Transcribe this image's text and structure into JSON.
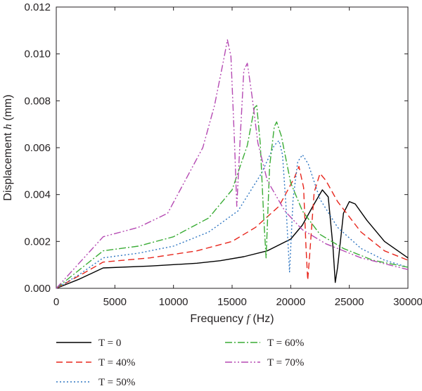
{
  "chart_data": {
    "type": "line",
    "xlabel": "Frequency f (Hz)",
    "xlabel_parts": [
      "Frequency ",
      "f",
      " (Hz)"
    ],
    "ylabel": "Displacement h (mm)",
    "ylabel_parts": [
      "Displacement ",
      "h",
      " (mm)"
    ],
    "xlim": [
      0,
      30000
    ],
    "ylim": [
      0,
      0.012
    ],
    "x_ticks": [
      "0",
      "5000",
      "10000",
      "15000",
      "20000",
      "25000",
      "30000"
    ],
    "y_ticks": [
      "0.000",
      "0.002",
      "0.004",
      "0.006",
      "0.008",
      "0.010",
      "0.012"
    ],
    "grid": false,
    "legend_position": "bottom",
    "series": [
      {
        "name": "T = 0",
        "color": "#000000",
        "dash": "solid",
        "points": [
          [
            0,
            0.0
          ],
          [
            2000,
            0.0004
          ],
          [
            4000,
            0.00087
          ],
          [
            8000,
            0.00095
          ],
          [
            12000,
            0.00107
          ],
          [
            14000,
            0.00118
          ],
          [
            16000,
            0.00135
          ],
          [
            18000,
            0.0016
          ],
          [
            20000,
            0.0021
          ],
          [
            21000,
            0.0027
          ],
          [
            22000,
            0.0036
          ],
          [
            22700,
            0.0042
          ],
          [
            23200,
            0.0039
          ],
          [
            23600,
            0.0018
          ],
          [
            23800,
            0.00025
          ],
          [
            24000,
            0.0009
          ],
          [
            24500,
            0.0032
          ],
          [
            25000,
            0.0037
          ],
          [
            25500,
            0.0036
          ],
          [
            26500,
            0.0029
          ],
          [
            28000,
            0.002
          ],
          [
            30000,
            0.0013
          ]
        ]
      },
      {
        "name": "T = 40%",
        "color": "#e8261c",
        "dash": "9 5",
        "points": [
          [
            0,
            0.0
          ],
          [
            2000,
            0.00055
          ],
          [
            4000,
            0.00112
          ],
          [
            8000,
            0.0013
          ],
          [
            12000,
            0.0016
          ],
          [
            15000,
            0.002
          ],
          [
            17000,
            0.0026
          ],
          [
            19000,
            0.0035
          ],
          [
            20300,
            0.0047
          ],
          [
            20700,
            0.0052
          ],
          [
            21100,
            0.0043
          ],
          [
            21300,
            0.0018
          ],
          [
            21450,
            0.00035
          ],
          [
            21600,
            0.0013
          ],
          [
            22000,
            0.0041
          ],
          [
            22500,
            0.0049
          ],
          [
            23000,
            0.0046
          ],
          [
            24000,
            0.0037
          ],
          [
            26000,
            0.0024
          ],
          [
            28000,
            0.0016
          ],
          [
            30000,
            0.0012
          ]
        ]
      },
      {
        "name": "T = 50%",
        "color": "#2f76c2",
        "dash": "2 3",
        "points": [
          [
            0,
            0.0
          ],
          [
            2000,
            0.0006
          ],
          [
            4000,
            0.0013
          ],
          [
            7000,
            0.0015
          ],
          [
            10000,
            0.0018
          ],
          [
            13000,
            0.0024
          ],
          [
            15500,
            0.0033
          ],
          [
            17500,
            0.0049
          ],
          [
            18600,
            0.0061
          ],
          [
            19000,
            0.0063
          ],
          [
            19300,
            0.0057
          ],
          [
            19600,
            0.0035
          ],
          [
            19900,
            0.0007
          ],
          [
            20200,
            0.0038
          ],
          [
            20600,
            0.0054
          ],
          [
            21000,
            0.0057
          ],
          [
            21500,
            0.0053
          ],
          [
            22500,
            0.0038
          ],
          [
            24000,
            0.0026
          ],
          [
            26000,
            0.0017
          ],
          [
            28000,
            0.0012
          ],
          [
            30000,
            0.0009
          ]
        ]
      },
      {
        "name": "T = 60%",
        "color": "#3aac35",
        "dash": "10 3 2 3",
        "points": [
          [
            0,
            0.0
          ],
          [
            2000,
            0.0008
          ],
          [
            4000,
            0.0016
          ],
          [
            7000,
            0.0018
          ],
          [
            10000,
            0.0022
          ],
          [
            13000,
            0.003
          ],
          [
            15000,
            0.0042
          ],
          [
            16300,
            0.0061
          ],
          [
            16900,
            0.0077
          ],
          [
            17100,
            0.0078
          ],
          [
            17400,
            0.0062
          ],
          [
            17700,
            0.003
          ],
          [
            17900,
            0.0013
          ],
          [
            18200,
            0.0052
          ],
          [
            18600,
            0.0069
          ],
          [
            18800,
            0.0071
          ],
          [
            19200,
            0.0065
          ],
          [
            20000,
            0.0045
          ],
          [
            21000,
            0.0033
          ],
          [
            22500,
            0.0023
          ],
          [
            24500,
            0.0017
          ],
          [
            27000,
            0.0012
          ],
          [
            30000,
            0.0009
          ]
        ]
      },
      {
        "name": "T = 70%",
        "color": "#b54ab3",
        "dash": "10 3 2 3 2 3",
        "points": [
          [
            0,
            0.0
          ],
          [
            2000,
            0.0011
          ],
          [
            4000,
            0.0022
          ],
          [
            7000,
            0.0026
          ],
          [
            9500,
            0.0032
          ],
          [
            12500,
            0.006
          ],
          [
            13500,
            0.0078
          ],
          [
            14300,
            0.0098
          ],
          [
            14600,
            0.0106
          ],
          [
            14900,
            0.0099
          ],
          [
            15200,
            0.0063
          ],
          [
            15400,
            0.0035
          ],
          [
            15700,
            0.0065
          ],
          [
            16000,
            0.0093
          ],
          [
            16300,
            0.0096
          ],
          [
            16700,
            0.0082
          ],
          [
            17200,
            0.0062
          ],
          [
            18000,
            0.0046
          ],
          [
            19500,
            0.0033
          ],
          [
            21000,
            0.0025
          ],
          [
            23000,
            0.0019
          ],
          [
            26000,
            0.0013
          ],
          [
            30000,
            0.0008
          ]
        ]
      }
    ]
  }
}
